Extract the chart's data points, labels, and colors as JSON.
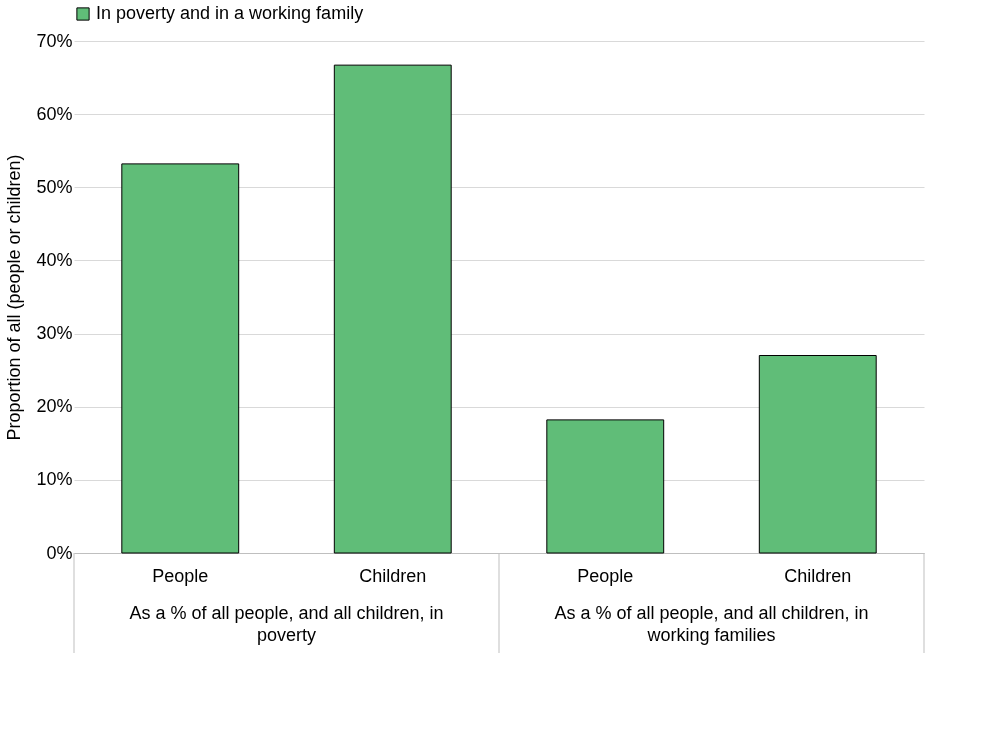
{
  "chart_data": {
    "type": "bar",
    "categories": [
      "People",
      "Children",
      "People",
      "Children"
    ],
    "series": [
      {
        "name": "In poverty and in a working family",
        "color": "#60bd78",
        "values": [
          53.2,
          66.7,
          18.2,
          27.0
        ]
      }
    ],
    "ylabel": "Proportion of all (people or children)",
    "ylim": [
      0,
      70
    ],
    "yticks": [
      {
        "value": 0,
        "label": "0%"
      },
      {
        "value": 10,
        "label": "10%"
      },
      {
        "value": 20,
        "label": "20%"
      },
      {
        "value": 30,
        "label": "30%"
      },
      {
        "value": 40,
        "label": "40%"
      },
      {
        "value": 50,
        "label": "50%"
      },
      {
        "value": 60,
        "label": "60%"
      },
      {
        "value": 70,
        "label": "70%"
      }
    ],
    "annotations": [
      "As a % of all people, and all children, in poverty",
      "As a % of all people, and all children, in working families"
    ],
    "grid": "y",
    "legend": "top"
  }
}
